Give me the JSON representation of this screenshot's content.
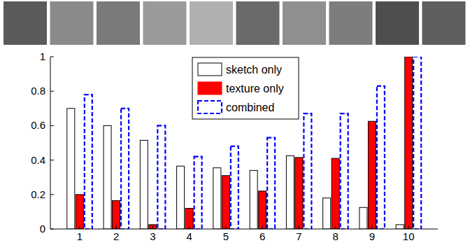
{
  "chart_data": {
    "type": "bar",
    "categories": [
      "1",
      "2",
      "3",
      "4",
      "5",
      "6",
      "7",
      "8",
      "9",
      "10"
    ],
    "series": [
      {
        "name": "sketch only",
        "color": "#ffffff",
        "line_style": "solid",
        "values": [
          0.7,
          0.6,
          0.515,
          0.365,
          0.355,
          0.34,
          0.425,
          0.18,
          0.125,
          0.025
        ]
      },
      {
        "name": "texture only",
        "color": "#ff0000",
        "line_style": "solid",
        "values": [
          0.2,
          0.165,
          0.025,
          0.12,
          0.31,
          0.22,
          0.415,
          0.41,
          0.625,
          1.0
        ]
      },
      {
        "name": "combined",
        "color": "#0000ff",
        "line_style": "dashed",
        "values": [
          0.78,
          0.7,
          0.6,
          0.42,
          0.48,
          0.53,
          0.67,
          0.67,
          0.83,
          1.0
        ]
      }
    ],
    "ylim": [
      0,
      1
    ],
    "yticks": [
      0,
      0.2,
      0.4,
      0.6,
      0.8,
      1
    ],
    "grid": false,
    "legend": "top"
  }
}
